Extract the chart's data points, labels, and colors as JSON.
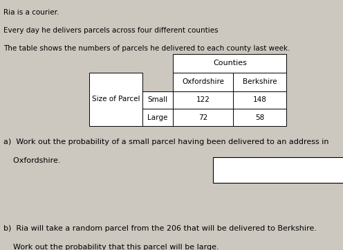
{
  "background_color": "#ccc8c0",
  "title_lines": [
    "Ria is a courier.",
    "Every day he delivers parcels across four different counties",
    "The table shows the numbers of parcels he delivered to each county last week."
  ],
  "table": {
    "counties_header": "Counties",
    "col_headers": [
      "Oxfordshire",
      "Berkshire"
    ],
    "row_label_header": "Size of Parcel",
    "row_labels": [
      "Small",
      "Large"
    ],
    "values": [
      [
        122,
        148
      ],
      [
        72,
        58
      ]
    ]
  },
  "question_a_line1": "a)  Work out the probability of a small parcel having been delivered to an address in",
  "question_a_line2": "    Oxfordshire.",
  "question_b_line1": "b)  Ria will take a random parcel from the 206 that will be delivered to Berkshire.",
  "question_b_line2": "    Work out the probability that this parcel will be large.",
  "font_size_title": 7.5,
  "font_size_question": 8.0,
  "font_size_table": 8.0
}
